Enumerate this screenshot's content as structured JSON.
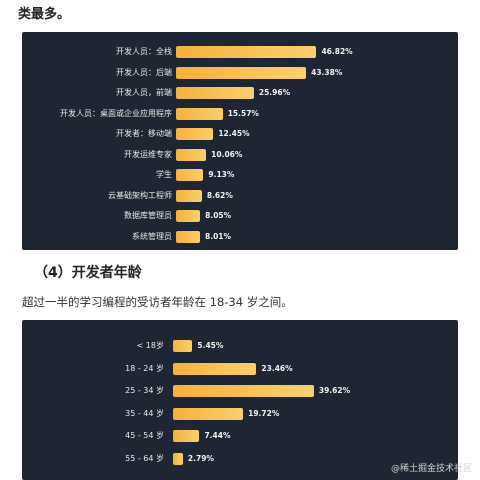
{
  "top_text": "类最多。",
  "section": {
    "heading": "（4）开发者年龄",
    "paragraph": "超过一半的学习编程的受访者年龄在 18-34 岁之间。"
  },
  "watermark": "@稀土掘金技术社区",
  "chart_data": [
    {
      "type": "bar",
      "orientation": "horizontal",
      "categories": [
        "开发人员：全栈",
        "开发人员：后端",
        "开发人员，前端",
        "开发人员：桌面或企业应用程序",
        "开发者：移动端",
        "开发运维专家",
        "学生",
        "云基础架构工程师",
        "数据库管理员",
        "系统管理员"
      ],
      "values": [
        46.82,
        43.38,
        25.96,
        15.57,
        12.45,
        10.06,
        9.13,
        8.62,
        8.05,
        8.01
      ],
      "value_labels": [
        "46.82%",
        "43.38%",
        "25.96%",
        "15.57%",
        "12.45%",
        "10.06%",
        "9.13%",
        "8.62%",
        "8.05%",
        "8.01%"
      ],
      "xlim": [
        0,
        50
      ]
    },
    {
      "type": "bar",
      "orientation": "horizontal",
      "categories": [
        "< 18岁",
        "18 - 24 岁",
        "25 - 34 岁",
        "35 - 44 岁",
        "45 - 54 岁",
        "55 - 64 岁"
      ],
      "values": [
        5.45,
        23.46,
        39.62,
        19.72,
        7.44,
        2.79
      ],
      "value_labels": [
        "5.45%",
        "23.46%",
        "39.62%",
        "19.72%",
        "7.44%",
        "2.79%"
      ],
      "xlim": [
        0,
        45
      ]
    }
  ],
  "colors": {
    "panel_bg": "#1f2633",
    "bar": "#f6b13c"
  }
}
